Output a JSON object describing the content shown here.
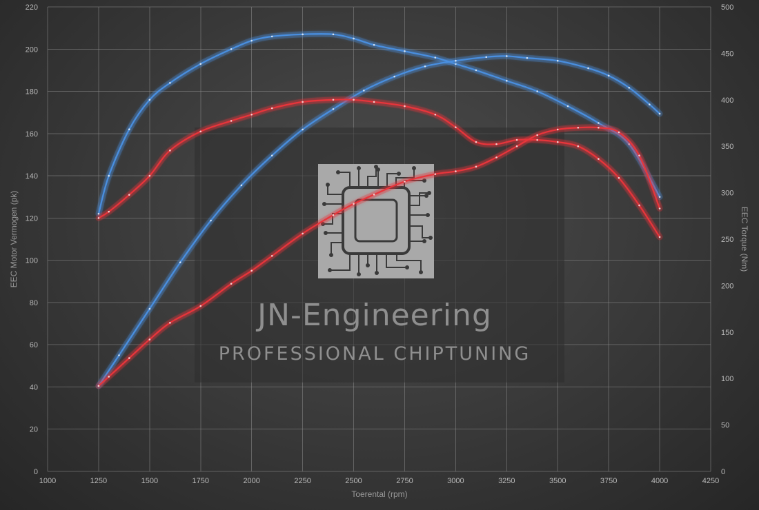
{
  "watermark": {
    "title": "JN-Engineering",
    "subtitle": "PROFESSIONAL CHIPTUNING",
    "logo_icon": "circuit-chip-icon"
  },
  "chart_data": {
    "type": "line",
    "xlabel": "Toerental (rpm)",
    "ylabel_left": "EEC Motor Vermogen (pk)",
    "ylabel_right": "EEC Torque (Nm)",
    "xlim": [
      1000,
      4250
    ],
    "xticks": [
      1000,
      1250,
      1500,
      1750,
      2000,
      2250,
      2500,
      2750,
      3000,
      3250,
      3500,
      3750,
      4000,
      4250
    ],
    "ylim_left": [
      0,
      220
    ],
    "yticks_left": [
      0,
      20,
      40,
      60,
      80,
      100,
      120,
      140,
      160,
      180,
      200,
      220
    ],
    "ylim_right": [
      0,
      500
    ],
    "yticks_right": [
      0,
      50,
      100,
      150,
      200,
      250,
      300,
      350,
      400,
      450,
      500
    ],
    "grid": true,
    "colors": {
      "tuned": "#4a8fe0",
      "stock": "#e8343a"
    },
    "series": [
      {
        "axis": "left",
        "variant": "tuned",
        "x": [
          1250,
          1300,
          1400,
          1500,
          1600,
          1750,
          1900,
          2000,
          2100,
          2250,
          2400,
          2500,
          2600,
          2750,
          2900,
          3000,
          3100,
          3250,
          3400,
          3550,
          3700,
          3850,
          4000
        ],
        "values": [
          122,
          140,
          162,
          176,
          184,
          193,
          200,
          204,
          206,
          207,
          207,
          205,
          202,
          199,
          196,
          193,
          190,
          185,
          180,
          173,
          165,
          155,
          130
        ]
      },
      {
        "axis": "right",
        "variant": "tuned",
        "x": [
          1250,
          1350,
          1500,
          1650,
          1800,
          1950,
          2100,
          2250,
          2400,
          2550,
          2700,
          2850,
          3000,
          3150,
          3250,
          3350,
          3500,
          3650,
          3750,
          3850,
          3950,
          4000
        ],
        "values": [
          92,
          125,
          175,
          225,
          270,
          308,
          340,
          368,
          390,
          410,
          425,
          436,
          442,
          446,
          447,
          445,
          442,
          434,
          426,
          413,
          395,
          385
        ]
      },
      {
        "axis": "left",
        "variant": "stock",
        "x": [
          1250,
          1300,
          1400,
          1500,
          1600,
          1750,
          1900,
          2000,
          2100,
          2250,
          2400,
          2500,
          2600,
          2750,
          2900,
          3000,
          3100,
          3200,
          3300,
          3400,
          3500,
          3600,
          3700,
          3800,
          3900,
          4000
        ],
        "values": [
          120,
          123,
          131,
          140,
          152,
          161,
          166,
          169,
          172,
          175,
          176,
          176,
          175,
          173,
          169,
          163,
          156,
          155,
          157,
          157,
          156,
          154,
          148,
          139,
          126,
          111
        ]
      },
      {
        "axis": "right",
        "variant": "stock",
        "x": [
          1250,
          1300,
          1400,
          1500,
          1600,
          1750,
          1900,
          2000,
          2100,
          2250,
          2400,
          2500,
          2600,
          2750,
          2900,
          3000,
          3100,
          3200,
          3300,
          3400,
          3500,
          3600,
          3700,
          3800,
          3900,
          4000
        ],
        "values": [
          92,
          102,
          122,
          142,
          160,
          178,
          202,
          216,
          232,
          256,
          276,
          288,
          298,
          312,
          320,
          323,
          328,
          338,
          350,
          362,
          368,
          370,
          370,
          365,
          340,
          283
        ]
      }
    ]
  }
}
